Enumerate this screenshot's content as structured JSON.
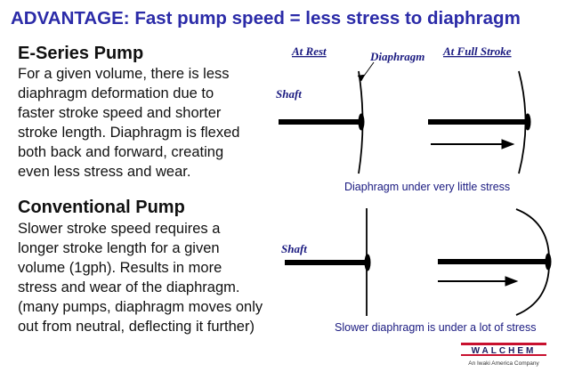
{
  "header": {
    "title": "ADVANTAGE: Fast pump speed = less stress to diaphragm"
  },
  "sections": [
    {
      "heading": "E-Series Pump",
      "lines": [
        "For a given volume, there is less",
        "diaphragm deformation due to",
        "faster stroke speed and shorter",
        "stroke length. Diaphragm is flexed",
        "both back and forward, creating",
        "even less stress and wear."
      ]
    },
    {
      "heading": "Conventional Pump",
      "lines": [
        "Slower stroke speed requires a",
        "longer stroke length for a given",
        "volume (1gph).  Results in more",
        "stress and wear of the diaphragm.",
        "(many pumps, diaphragm moves only",
        "out from neutral, deflecting it further)"
      ]
    }
  ],
  "diagram": {
    "at_rest": "At Rest",
    "at_full_stroke": "At Full Stroke",
    "diaphragm_label": "Diaphragm",
    "shaft_label_top": "Shaft",
    "shaft_label_bottom": "Shaft",
    "caption_top": "Diaphragm under very little stress",
    "caption_bottom": "Slower diaphragm is under a lot of stress"
  },
  "logo": {
    "name": "WALCHEM",
    "tagline": "An Iwaki America Company"
  }
}
